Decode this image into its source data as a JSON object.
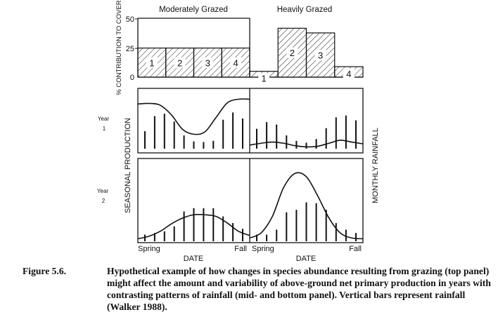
{
  "chart_data": {
    "type": "bar",
    "title": "",
    "top_panel": {
      "ylabel": "% CONTRIBUTION TO COVER",
      "ylim": [
        0,
        50
      ],
      "yticks": [
        "50",
        "25",
        "0"
      ],
      "groups": [
        {
          "name": "Moderately Grazed",
          "categories": [
            "1",
            "2",
            "3",
            "4"
          ],
          "values": [
            25,
            25,
            25,
            25
          ]
        },
        {
          "name": "Heavily Grazed",
          "categories": [
            "1",
            "2",
            "3",
            "4"
          ],
          "values": [
            5,
            42,
            38,
            9
          ]
        }
      ]
    },
    "middle_panel": {
      "row_label": "Year 1",
      "line_label": "SEASONAL PRODUCTION",
      "bar_label": "MONTHLY RAINFALL",
      "groups": [
        {
          "name": "Moderately Grazed",
          "rainfall": [
            29,
            54,
            58,
            45,
            22,
            12,
            11,
            13,
            48,
            60,
            50
          ],
          "production": [
            74,
            75,
            72,
            56,
            32,
            24,
            28,
            52,
            76,
            82,
            82
          ]
        },
        {
          "name": "Heavily Grazed",
          "rainfall": [
            33,
            44,
            40,
            22,
            13,
            10,
            16,
            34,
            52,
            55,
            47
          ],
          "production": [
            6,
            9,
            11,
            9,
            5,
            3,
            4,
            9,
            14,
            11,
            8
          ]
        }
      ]
    },
    "bottom_panel": {
      "row_label": "Year 2",
      "groups": [
        {
          "name": "Moderately Grazed",
          "rainfall": [
            8,
            10,
            12,
            18,
            36,
            40,
            40,
            40,
            30,
            22,
            15
          ],
          "production": [
            3,
            6,
            12,
            21,
            28,
            32,
            32,
            30,
            22,
            12,
            7
          ]
        },
        {
          "name": "Heavily Grazed",
          "rainfall": [
            8,
            8,
            14,
            35,
            38,
            47,
            46,
            38,
            22,
            14,
            10
          ],
          "production": [
            4,
            10,
            30,
            65,
            82,
            78,
            55,
            28,
            10,
            4,
            3
          ]
        }
      ]
    },
    "xlabel": "DATE",
    "x_ticks": [
      "Spring",
      "Fall"
    ],
    "row_labels": {
      "year1_a": "Year",
      "year1_b": "1",
      "year2_a": "Year",
      "year2_b": "2"
    }
  },
  "caption": {
    "figure_number": "Figure 5.6.",
    "text": "Hypothetical example of how changes in species abundance resulting from grazing (top panel) might affect the amount and variability of above-ground net primary production in years with contrasting patterns of rainfall (mid- and bottom panel). Vertical bars represent rainfall (Walker 1988)."
  }
}
